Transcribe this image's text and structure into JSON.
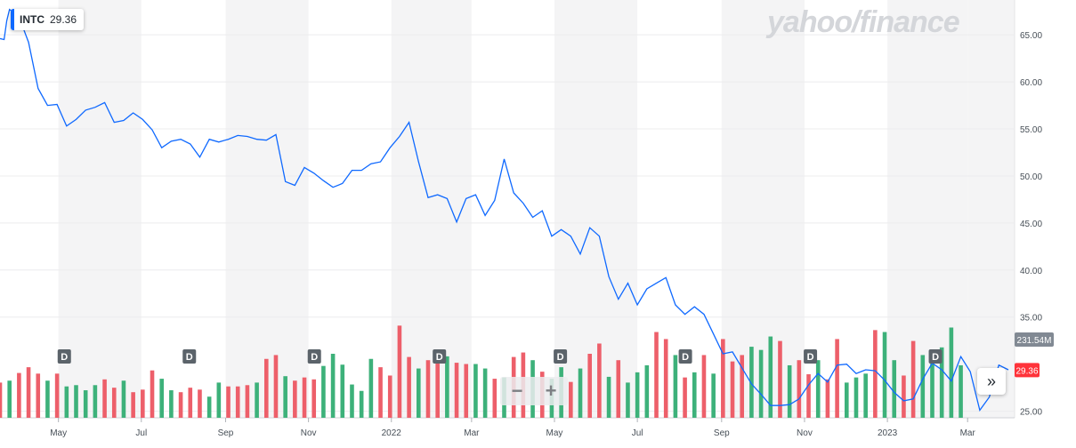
{
  "ticker": {
    "symbol": "INTC",
    "price": "29.36"
  },
  "logo_text": "yahoo/finance",
  "zoom": {
    "out_label": "−",
    "in_label": "+"
  },
  "scroll_label": "»",
  "dividend_marker": "D",
  "colors": {
    "line": "#0f69ff",
    "up": "#3db17a",
    "down": "#ed5f6a",
    "band": "#f4f4f5",
    "accent": "#0f69ff",
    "volume_tag": "#818993",
    "price_tag": "#ff333a"
  },
  "chart_data": {
    "type": "line",
    "y_axis_ticks": [
      "65.00",
      "60.00",
      "55.00",
      "50.00",
      "45.00",
      "40.00",
      "35.00",
      "25.00"
    ],
    "ylim": [
      24.3,
      68.7
    ],
    "x_axis_labels": [
      "May",
      "Jul",
      "Sep",
      "Nov",
      "2022",
      "Mar",
      "May",
      "Jul",
      "Sep",
      "Nov",
      "2023",
      "Mar"
    ],
    "price_series": [
      {
        "x": "2021-03-19",
        "y": 64.6
      },
      {
        "x": "2021-03-22",
        "y": 64.5
      },
      {
        "x": "2021-03-24",
        "y": 66.5
      },
      {
        "x": "2021-03-26",
        "y": 67.7
      },
      {
        "x": "2021-04-02",
        "y": 66.9
      },
      {
        "x": "2021-04-09",
        "y": 64.2
      },
      {
        "x": "2021-04-16",
        "y": 59.3
      },
      {
        "x": "2021-04-23",
        "y": 57.5
      },
      {
        "x": "2021-04-30",
        "y": 57.6
      },
      {
        "x": "2021-05-07",
        "y": 55.3
      },
      {
        "x": "2021-05-14",
        "y": 56.0
      },
      {
        "x": "2021-05-21",
        "y": 57.0
      },
      {
        "x": "2021-05-28",
        "y": 57.3
      },
      {
        "x": "2021-06-04",
        "y": 57.8
      },
      {
        "x": "2021-06-11",
        "y": 55.7
      },
      {
        "x": "2021-06-18",
        "y": 55.9
      },
      {
        "x": "2021-06-25",
        "y": 56.7
      },
      {
        "x": "2021-07-02",
        "y": 56.0
      },
      {
        "x": "2021-07-09",
        "y": 54.9
      },
      {
        "x": "2021-07-16",
        "y": 53.0
      },
      {
        "x": "2021-07-23",
        "y": 53.7
      },
      {
        "x": "2021-07-30",
        "y": 53.9
      },
      {
        "x": "2021-08-06",
        "y": 53.4
      },
      {
        "x": "2021-08-13",
        "y": 52.0
      },
      {
        "x": "2021-08-20",
        "y": 53.9
      },
      {
        "x": "2021-08-27",
        "y": 53.6
      },
      {
        "x": "2021-09-03",
        "y": 53.9
      },
      {
        "x": "2021-09-10",
        "y": 54.3
      },
      {
        "x": "2021-09-17",
        "y": 54.2
      },
      {
        "x": "2021-09-24",
        "y": 53.9
      },
      {
        "x": "2021-10-01",
        "y": 53.8
      },
      {
        "x": "2021-10-08",
        "y": 54.4
      },
      {
        "x": "2021-10-15",
        "y": 49.4
      },
      {
        "x": "2021-10-22",
        "y": 49.0
      },
      {
        "x": "2021-10-29",
        "y": 50.9
      },
      {
        "x": "2021-11-05",
        "y": 50.3
      },
      {
        "x": "2021-11-12",
        "y": 49.5
      },
      {
        "x": "2021-11-19",
        "y": 48.8
      },
      {
        "x": "2021-11-26",
        "y": 49.2
      },
      {
        "x": "2021-12-03",
        "y": 50.6
      },
      {
        "x": "2021-12-10",
        "y": 50.6
      },
      {
        "x": "2021-12-17",
        "y": 51.3
      },
      {
        "x": "2021-12-24",
        "y": 51.5
      },
      {
        "x": "2021-12-31",
        "y": 53.0
      },
      {
        "x": "2022-01-07",
        "y": 54.2
      },
      {
        "x": "2022-01-14",
        "y": 55.7
      },
      {
        "x": "2022-01-21",
        "y": 51.5
      },
      {
        "x": "2022-01-28",
        "y": 47.7
      },
      {
        "x": "2022-02-04",
        "y": 48.0
      },
      {
        "x": "2022-02-11",
        "y": 47.6
      },
      {
        "x": "2022-02-18",
        "y": 45.1
      },
      {
        "x": "2022-02-25",
        "y": 47.6
      },
      {
        "x": "2022-03-04",
        "y": 48.0
      },
      {
        "x": "2022-03-11",
        "y": 45.8
      },
      {
        "x": "2022-03-18",
        "y": 47.4
      },
      {
        "x": "2022-03-25",
        "y": 51.8
      },
      {
        "x": "2022-04-01",
        "y": 48.2
      },
      {
        "x": "2022-04-08",
        "y": 47.1
      },
      {
        "x": "2022-04-15",
        "y": 45.6
      },
      {
        "x": "2022-04-22",
        "y": 46.3
      },
      {
        "x": "2022-04-29",
        "y": 43.6
      },
      {
        "x": "2022-05-06",
        "y": 44.3
      },
      {
        "x": "2022-05-13",
        "y": 43.6
      },
      {
        "x": "2022-05-20",
        "y": 41.7
      },
      {
        "x": "2022-05-27",
        "y": 44.5
      },
      {
        "x": "2022-06-03",
        "y": 43.6
      },
      {
        "x": "2022-06-10",
        "y": 39.3
      },
      {
        "x": "2022-06-17",
        "y": 36.9
      },
      {
        "x": "2022-06-24",
        "y": 38.6
      },
      {
        "x": "2022-07-01",
        "y": 36.3
      },
      {
        "x": "2022-07-08",
        "y": 38.0
      },
      {
        "x": "2022-07-15",
        "y": 38.6
      },
      {
        "x": "2022-07-22",
        "y": 39.2
      },
      {
        "x": "2022-07-29",
        "y": 36.3
      },
      {
        "x": "2022-08-05",
        "y": 35.3
      },
      {
        "x": "2022-08-12",
        "y": 36.1
      },
      {
        "x": "2022-08-19",
        "y": 35.3
      },
      {
        "x": "2022-08-26",
        "y": 33.2
      },
      {
        "x": "2022-09-02",
        "y": 31.1
      },
      {
        "x": "2022-09-09",
        "y": 31.3
      },
      {
        "x": "2022-09-16",
        "y": 29.6
      },
      {
        "x": "2022-09-23",
        "y": 27.9
      },
      {
        "x": "2022-09-30",
        "y": 26.8
      },
      {
        "x": "2022-10-07",
        "y": 25.6
      },
      {
        "x": "2022-10-14",
        "y": 25.6
      },
      {
        "x": "2022-10-21",
        "y": 25.7
      },
      {
        "x": "2022-10-28",
        "y": 26.3
      },
      {
        "x": "2022-11-04",
        "y": 27.8
      },
      {
        "x": "2022-11-11",
        "y": 29.0
      },
      {
        "x": "2022-11-18",
        "y": 28.1
      },
      {
        "x": "2022-11-25",
        "y": 29.9
      },
      {
        "x": "2022-12-02",
        "y": 30.0
      },
      {
        "x": "2022-12-09",
        "y": 29.0
      },
      {
        "x": "2022-12-16",
        "y": 29.4
      },
      {
        "x": "2022-12-23",
        "y": 29.3
      },
      {
        "x": "2022-12-30",
        "y": 28.3
      },
      {
        "x": "2023-01-06",
        "y": 27.0
      },
      {
        "x": "2023-01-13",
        "y": 26.1
      },
      {
        "x": "2023-01-20",
        "y": 26.3
      },
      {
        "x": "2023-01-27",
        "y": 28.4
      },
      {
        "x": "2023-02-03",
        "y": 30.1
      },
      {
        "x": "2023-02-10",
        "y": 29.4
      },
      {
        "x": "2023-02-17",
        "y": 28.2
      },
      {
        "x": "2023-02-24",
        "y": 30.8
      },
      {
        "x": "2023-03-03",
        "y": 29.2
      },
      {
        "x": "2023-03-10",
        "y": 25.1
      },
      {
        "x": "2023-03-17",
        "y": 26.5
      },
      {
        "x": "2023-03-24",
        "y": 29.9
      },
      {
        "x": "2023-03-31",
        "y": 29.4
      }
    ],
    "volume_bars": [
      {
        "x": "2021-03-19",
        "dir": "down",
        "v": 0.55
      },
      {
        "x": "2021-03-26",
        "dir": "up",
        "v": 0.58
      },
      {
        "x": "2021-04-02",
        "dir": "down",
        "v": 0.7
      },
      {
        "x": "2021-04-09",
        "dir": "down",
        "v": 0.79
      },
      {
        "x": "2021-04-16",
        "dir": "down",
        "v": 0.69
      },
      {
        "x": "2021-04-23",
        "dir": "up",
        "v": 0.58
      },
      {
        "x": "2021-04-30",
        "dir": "down",
        "v": 0.69
      },
      {
        "x": "2021-05-07",
        "dir": "up",
        "v": 0.49
      },
      {
        "x": "2021-05-14",
        "dir": "up",
        "v": 0.51
      },
      {
        "x": "2021-05-21",
        "dir": "up",
        "v": 0.43
      },
      {
        "x": "2021-05-28",
        "dir": "up",
        "v": 0.51
      },
      {
        "x": "2021-06-04",
        "dir": "down",
        "v": 0.6
      },
      {
        "x": "2021-06-11",
        "dir": "down",
        "v": 0.47
      },
      {
        "x": "2021-06-18",
        "dir": "up",
        "v": 0.58
      },
      {
        "x": "2021-06-25",
        "dir": "down",
        "v": 0.4
      },
      {
        "x": "2021-07-02",
        "dir": "down",
        "v": 0.44
      },
      {
        "x": "2021-07-09",
        "dir": "down",
        "v": 0.74
      },
      {
        "x": "2021-07-16",
        "dir": "up",
        "v": 0.61
      },
      {
        "x": "2021-07-23",
        "dir": "up",
        "v": 0.43
      },
      {
        "x": "2021-07-30",
        "dir": "down",
        "v": 0.4
      },
      {
        "x": "2021-08-06",
        "dir": "down",
        "v": 0.47
      },
      {
        "x": "2021-08-13",
        "dir": "down",
        "v": 0.44
      },
      {
        "x": "2021-08-20",
        "dir": "up",
        "v": 0.33
      },
      {
        "x": "2021-08-27",
        "dir": "up",
        "v": 0.55
      },
      {
        "x": "2021-09-03",
        "dir": "down",
        "v": 0.49
      },
      {
        "x": "2021-09-10",
        "dir": "down",
        "v": 0.49
      },
      {
        "x": "2021-09-17",
        "dir": "down",
        "v": 0.51
      },
      {
        "x": "2021-09-24",
        "dir": "up",
        "v": 0.55
      },
      {
        "x": "2021-10-01",
        "dir": "down",
        "v": 0.92
      },
      {
        "x": "2021-10-08",
        "dir": "down",
        "v": 0.98
      },
      {
        "x": "2021-10-15",
        "dir": "up",
        "v": 0.65
      },
      {
        "x": "2021-10-22",
        "dir": "down",
        "v": 0.58
      },
      {
        "x": "2021-10-29",
        "dir": "down",
        "v": 0.63
      },
      {
        "x": "2021-11-05",
        "dir": "down",
        "v": 0.6
      },
      {
        "x": "2021-11-12",
        "dir": "up",
        "v": 0.81
      },
      {
        "x": "2021-11-19",
        "dir": "up",
        "v": 1.0
      },
      {
        "x": "2021-11-26",
        "dir": "up",
        "v": 0.83
      },
      {
        "x": "2021-12-03",
        "dir": "up",
        "v": 0.52
      },
      {
        "x": "2021-12-10",
        "dir": "up",
        "v": 0.42
      },
      {
        "x": "2021-12-17",
        "dir": "up",
        "v": 0.92
      },
      {
        "x": "2021-12-24",
        "dir": "down",
        "v": 0.79
      },
      {
        "x": "2021-12-31",
        "dir": "down",
        "v": 0.66
      },
      {
        "x": "2022-01-07",
        "dir": "down",
        "v": 1.44
      },
      {
        "x": "2022-01-14",
        "dir": "down",
        "v": 0.95
      },
      {
        "x": "2022-01-21",
        "dir": "up",
        "v": 0.77
      },
      {
        "x": "2022-01-28",
        "dir": "down",
        "v": 0.9
      },
      {
        "x": "2022-02-04",
        "dir": "down",
        "v": 0.96
      },
      {
        "x": "2022-02-11",
        "dir": "up",
        "v": 0.96
      },
      {
        "x": "2022-02-18",
        "dir": "down",
        "v": 0.86
      },
      {
        "x": "2022-02-25",
        "dir": "down",
        "v": 0.84
      },
      {
        "x": "2022-03-04",
        "dir": "up",
        "v": 0.84
      },
      {
        "x": "2022-03-11",
        "dir": "up",
        "v": 0.77
      },
      {
        "x": "2022-03-18",
        "dir": "down",
        "v": 0.61
      },
      {
        "x": "2022-03-25",
        "dir": "up",
        "v": 0.63
      },
      {
        "x": "2022-04-01",
        "dir": "down",
        "v": 0.95
      },
      {
        "x": "2022-04-08",
        "dir": "down",
        "v": 1.02
      },
      {
        "x": "2022-04-15",
        "dir": "up",
        "v": 0.9
      },
      {
        "x": "2022-04-22",
        "dir": "down",
        "v": 0.72
      },
      {
        "x": "2022-04-29",
        "dir": "up",
        "v": 0.61
      },
      {
        "x": "2022-05-06",
        "dir": "up",
        "v": 0.79
      },
      {
        "x": "2022-05-13",
        "dir": "down",
        "v": 0.56
      },
      {
        "x": "2022-05-20",
        "dir": "up",
        "v": 0.77
      },
      {
        "x": "2022-05-27",
        "dir": "down",
        "v": 1.0
      },
      {
        "x": "2022-06-03",
        "dir": "down",
        "v": 1.16
      },
      {
        "x": "2022-06-10",
        "dir": "up",
        "v": 0.64
      },
      {
        "x": "2022-06-17",
        "dir": "down",
        "v": 0.9
      },
      {
        "x": "2022-06-24",
        "dir": "up",
        "v": 0.55
      },
      {
        "x": "2022-07-01",
        "dir": "up",
        "v": 0.71
      },
      {
        "x": "2022-07-08",
        "dir": "up",
        "v": 0.82
      },
      {
        "x": "2022-07-15",
        "dir": "down",
        "v": 1.34
      },
      {
        "x": "2022-07-22",
        "dir": "down",
        "v": 1.23
      },
      {
        "x": "2022-07-29",
        "dir": "up",
        "v": 0.98
      },
      {
        "x": "2022-08-05",
        "dir": "down",
        "v": 0.63
      },
      {
        "x": "2022-08-12",
        "dir": "up",
        "v": 0.71
      },
      {
        "x": "2022-08-19",
        "dir": "down",
        "v": 0.98
      },
      {
        "x": "2022-08-26",
        "dir": "up",
        "v": 0.69
      },
      {
        "x": "2022-09-02",
        "dir": "down",
        "v": 1.23
      },
      {
        "x": "2022-09-09",
        "dir": "down",
        "v": 0.88
      },
      {
        "x": "2022-09-16",
        "dir": "down",
        "v": 0.98
      },
      {
        "x": "2022-09-23",
        "dir": "up",
        "v": 1.11
      },
      {
        "x": "2022-09-30",
        "dir": "up",
        "v": 1.06
      },
      {
        "x": "2022-10-07",
        "dir": "up",
        "v": 1.27
      },
      {
        "x": "2022-10-14",
        "dir": "down",
        "v": 1.2
      },
      {
        "x": "2022-10-21",
        "dir": "up",
        "v": 0.82
      },
      {
        "x": "2022-10-28",
        "dir": "down",
        "v": 0.9
      },
      {
        "x": "2022-11-04",
        "dir": "down",
        "v": 0.68
      },
      {
        "x": "2022-11-11",
        "dir": "up",
        "v": 0.9
      },
      {
        "x": "2022-11-18",
        "dir": "down",
        "v": 0.6
      },
      {
        "x": "2022-11-25",
        "dir": "down",
        "v": 1.23
      },
      {
        "x": "2022-12-02",
        "dir": "up",
        "v": 0.55
      },
      {
        "x": "2022-12-09",
        "dir": "up",
        "v": 0.63
      },
      {
        "x": "2022-12-16",
        "dir": "up",
        "v": 0.69
      },
      {
        "x": "2022-12-23",
        "dir": "down",
        "v": 1.37
      },
      {
        "x": "2022-12-30",
        "dir": "up",
        "v": 1.34
      },
      {
        "x": "2023-01-06",
        "dir": "up",
        "v": 0.9
      },
      {
        "x": "2023-01-13",
        "dir": "down",
        "v": 0.66
      },
      {
        "x": "2023-01-20",
        "dir": "down",
        "v": 1.2
      },
      {
        "x": "2023-01-27",
        "dir": "up",
        "v": 0.98
      },
      {
        "x": "2023-02-03",
        "dir": "up",
        "v": 1.02
      },
      {
        "x": "2023-02-10",
        "dir": "up",
        "v": 1.1
      },
      {
        "x": "2023-02-17",
        "dir": "up",
        "v": 1.41
      },
      {
        "x": "2023-02-24",
        "dir": "up",
        "v": 0.82
      }
    ],
    "volume_label": "231.54M",
    "last_price_label": "29.36",
    "dividend_marker_dates": [
      "2021-05-05",
      "2021-08-05",
      "2021-11-05",
      "2022-02-05",
      "2022-05-05",
      "2022-08-05",
      "2022-11-05",
      "2023-02-05"
    ]
  }
}
